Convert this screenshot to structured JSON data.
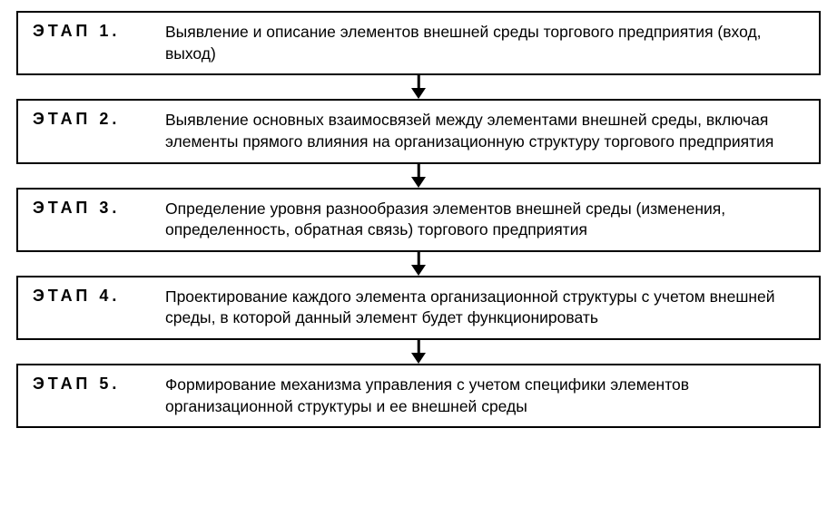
{
  "flowchart": {
    "type": "flowchart",
    "background_color": "#ffffff",
    "box_border_color": "#000000",
    "box_border_width": 2.5,
    "text_color": "#000000",
    "label_fontsize": 18,
    "label_fontweight": 700,
    "label_letterspacing": 4,
    "description_fontsize": 17.5,
    "arrow_color": "#000000",
    "arrow_line_width": 2.5,
    "arrow_head_width": 16,
    "arrow_head_height": 12,
    "stages": [
      {
        "label": "ЭТАП 1.",
        "description": "Выявление и описание элементов внешней среды торгового предприятия (вход, выход)"
      },
      {
        "label": "ЭТАП 2.",
        "description": "Выявление основных взаимосвязей между элементами внешней среды, включая элементы прямого влияния на организационную структуру торгового предприятия"
      },
      {
        "label": "ЭТАП 3.",
        "description": "Определение уровня разнообразия элементов внешней среды (изменения, определенность, обратная связь) торгового предприятия"
      },
      {
        "label": "ЭТАП 4.",
        "description": "Проектирование каждого элемента организационной структуры с учетом внешней среды, в которой данный элемент будет функционировать"
      },
      {
        "label": "ЭТАП 5.",
        "description": "Формирование механизма управления с учетом специфики элементов организационной структуры и ее внешней среды"
      }
    ]
  }
}
